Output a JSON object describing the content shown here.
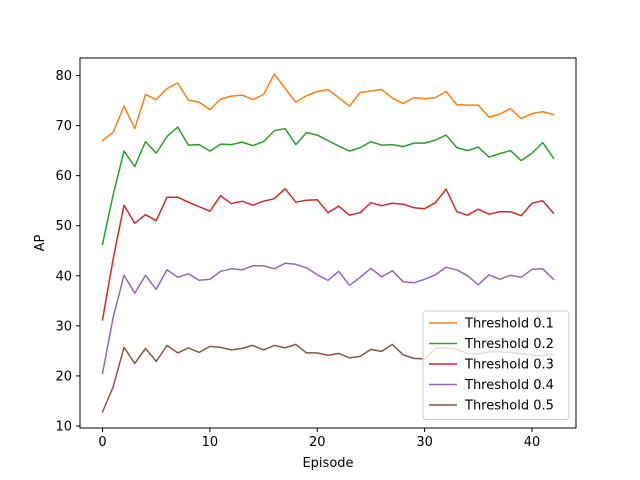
{
  "chart_data": {
    "type": "line",
    "xlabel": "Episode",
    "ylabel": "AP",
    "xlim": [
      -2.1,
      44.1
    ],
    "ylim": [
      9.6,
      83.5
    ],
    "xticks": [
      0,
      10,
      20,
      30,
      40
    ],
    "yticks": [
      10,
      20,
      30,
      40,
      50,
      60,
      70,
      80
    ],
    "grid": false,
    "legend_position": "lower-right",
    "x": [
      0,
      1,
      2,
      3,
      4,
      5,
      6,
      7,
      8,
      9,
      10,
      11,
      12,
      13,
      14,
      15,
      16,
      17,
      18,
      19,
      20,
      21,
      22,
      23,
      24,
      25,
      26,
      27,
      28,
      29,
      30,
      31,
      32,
      33,
      34,
      35,
      36,
      37,
      38,
      39,
      40,
      41,
      42
    ],
    "series": [
      {
        "name": "Threshold 0.1",
        "color": "#ff7f0e",
        "values": [
          67.0,
          68.7,
          73.9,
          69.4,
          76.2,
          75.2,
          77.4,
          78.5,
          75.1,
          74.7,
          73.2,
          75.3,
          75.9,
          76.1,
          75.2,
          76.2,
          80.3,
          77.4,
          74.7,
          76.0,
          76.8,
          77.2,
          75.6,
          73.9,
          76.6,
          76.9,
          77.2,
          75.5,
          74.4,
          75.6,
          75.4,
          75.6,
          76.8,
          74.2,
          74.1,
          74.1,
          71.7,
          72.3,
          73.4,
          71.4,
          72.4,
          72.8,
          72.2
        ]
      },
      {
        "name": "Threshold 0.2",
        "color": "#2ca02c",
        "values": [
          46.3,
          56.3,
          64.9,
          61.8,
          66.8,
          64.5,
          67.8,
          69.7,
          66.1,
          66.2,
          64.9,
          66.3,
          66.2,
          66.7,
          66.0,
          66.8,
          69.0,
          69.4,
          66.2,
          68.6,
          68.1,
          67.0,
          65.9,
          64.9,
          65.6,
          66.8,
          66.1,
          66.2,
          65.8,
          66.5,
          66.5,
          67.1,
          68.1,
          65.6,
          65.0,
          65.7,
          63.7,
          64.4,
          65.0,
          63.0,
          64.5,
          66.6,
          63.5
        ]
      },
      {
        "name": "Threshold 0.3",
        "color": "#d62728",
        "values": [
          31.2,
          43.5,
          54.1,
          50.5,
          52.2,
          51.0,
          55.7,
          55.7,
          54.7,
          53.8,
          52.9,
          56.0,
          54.4,
          54.9,
          54.1,
          54.9,
          55.4,
          57.4,
          54.7,
          55.1,
          55.2,
          52.6,
          53.9,
          52.1,
          52.6,
          54.6,
          54.0,
          54.5,
          54.3,
          53.6,
          53.4,
          54.6,
          57.3,
          52.8,
          52.1,
          53.3,
          52.3,
          52.8,
          52.8,
          52.0,
          54.5,
          55.0,
          52.5
        ]
      },
      {
        "name": "Threshold 0.4",
        "color": "#9467bd",
        "values": [
          20.5,
          31.8,
          40.1,
          36.5,
          40.1,
          37.3,
          41.2,
          39.7,
          40.4,
          39.1,
          39.3,
          40.9,
          41.4,
          41.2,
          42.0,
          42.0,
          41.4,
          42.5,
          42.3,
          41.6,
          40.2,
          39.1,
          40.9,
          38.1,
          39.7,
          41.5,
          39.8,
          41.0,
          38.8,
          38.6,
          39.3,
          40.2,
          41.7,
          41.2,
          40.0,
          38.2,
          40.2,
          39.3,
          40.1,
          39.7,
          41.3,
          41.4,
          39.3
        ]
      },
      {
        "name": "Threshold 0.5",
        "color": "#8c564b",
        "values": [
          12.8,
          17.9,
          25.7,
          22.5,
          25.5,
          22.9,
          26.1,
          24.6,
          25.6,
          24.7,
          25.9,
          25.7,
          25.2,
          25.5,
          26.1,
          25.2,
          26.1,
          25.6,
          26.3,
          24.6,
          24.6,
          24.1,
          24.5,
          23.6,
          23.9,
          25.3,
          24.9,
          26.3,
          24.2,
          23.5,
          23.4,
          25.5,
          25.6,
          25.3,
          24.5,
          24.4,
          24.8,
          24.8,
          24.7,
          24.4,
          24.2,
          24.0,
          24.4
        ]
      }
    ]
  }
}
